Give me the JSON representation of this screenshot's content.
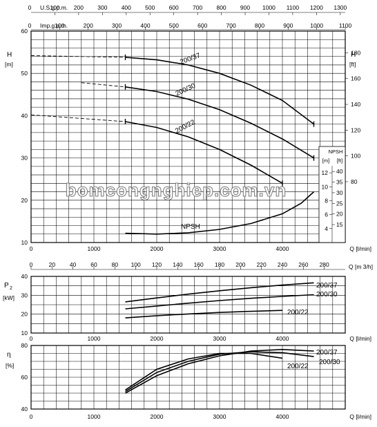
{
  "watermark": "bomcongnghiep.com.vn",
  "top_axes": {
    "usgpm": {
      "label": "U.S.g.p.m.",
      "start": "0",
      "ticks": [
        "100",
        "200",
        "300",
        "400",
        "500",
        "600",
        "700",
        "800",
        "900",
        "1000",
        "1100",
        "1200",
        "1300"
      ]
    },
    "impgpm": {
      "label": "Imp.g.p.m.",
      "start": "0",
      "ticks": [
        "100",
        "200",
        "300",
        "400",
        "500",
        "600",
        "700",
        "800",
        "900",
        "1000",
        "1100"
      ]
    }
  },
  "chart_data": [
    {
      "type": "line",
      "name": "head",
      "ylabel": "H",
      "yunit": "[m]",
      "ylabel_right": "H",
      "yunit_right": "[ft]",
      "xlabel": "Q [l/min]",
      "xlim": [
        0,
        5000
      ],
      "ylim": [
        10,
        60
      ],
      "x_ticks": [
        "0",
        "1000",
        "2000",
        "3000",
        "4000"
      ],
      "y_ticks": [
        "10",
        "20",
        "30",
        "40",
        "50",
        "60"
      ],
      "y_ticks_right": [
        "80",
        "100",
        "120",
        "140",
        "160",
        "180"
      ],
      "series": [
        {
          "name": "200/37",
          "dashed": [
            [
              0,
              54.2
            ],
            [
              1500,
              53.8
            ]
          ],
          "solid": [
            [
              1500,
              53.8
            ],
            [
              2000,
              53.2
            ],
            [
              2500,
              52.0
            ],
            [
              3000,
              50.0
            ],
            [
              3500,
              47.2
            ],
            [
              4000,
              43.6
            ],
            [
              4500,
              38.0
            ]
          ]
        },
        {
          "name": "200/30",
          "dashed": [
            [
              800,
              47.8
            ],
            [
              1500,
              46.8
            ]
          ],
          "solid": [
            [
              1500,
              46.8
            ],
            [
              2000,
              45.7
            ],
            [
              2500,
              43.9
            ],
            [
              3000,
              41.4
            ],
            [
              3500,
              38.2
            ],
            [
              4000,
              34.5
            ],
            [
              4500,
              30.0
            ]
          ]
        },
        {
          "name": "200/22",
          "dashed": [
            [
              0,
              40.2
            ],
            [
              1500,
              38.6
            ]
          ],
          "solid": [
            [
              1500,
              38.6
            ],
            [
              2000,
              37.2
            ],
            [
              2500,
              35.0
            ],
            [
              3000,
              32.0
            ],
            [
              3500,
              28.3
            ],
            [
              4000,
              24.0
            ]
          ]
        }
      ],
      "npsh": {
        "name": "NPSH",
        "points": [
          [
            1500,
            12.2
          ],
          [
            2000,
            12.0
          ],
          [
            2500,
            12.3
          ],
          [
            3000,
            13.1
          ],
          [
            3500,
            14.5
          ],
          [
            4000,
            16.8
          ],
          [
            4300,
            19.3
          ],
          [
            4500,
            22.0
          ]
        ],
        "box_label": "NPSH",
        "m_label": "[m]",
        "ft_label": "[ft]",
        "m_ticks": [
          "4",
          "6",
          "8",
          "10",
          "12"
        ],
        "ft_ticks": [
          "15",
          "20",
          "25",
          "30",
          "35",
          "40"
        ]
      }
    },
    {
      "type": "line",
      "name": "power",
      "ylabel": "P",
      "ylabel_sub": "2",
      "yunit": "[kW]",
      "xlabel": "Q [l/min]",
      "xlabel_m3h": "Q [m 3/h]",
      "xlim": [
        0,
        5000
      ],
      "ylim": [
        10,
        40
      ],
      "x_ticks": [
        "0",
        "1000",
        "2000",
        "3000",
        "4000"
      ],
      "x_ticks_m3h": [
        "0",
        "20",
        "40",
        "60",
        "80",
        "100",
        "120",
        "140",
        "160",
        "180",
        "200",
        "220",
        "240",
        "260",
        "280"
      ],
      "y_ticks": [
        "10",
        "20",
        "30",
        "40"
      ],
      "series": [
        {
          "name": "200/37",
          "points": [
            [
              1500,
              26.5
            ],
            [
              2000,
              28.6
            ],
            [
              2500,
              30.6
            ],
            [
              3000,
              32.4
            ],
            [
              3500,
              34.0
            ],
            [
              4000,
              35.4
            ],
            [
              4500,
              36.6
            ]
          ]
        },
        {
          "name": "200/30",
          "points": [
            [
              1500,
              22.8
            ],
            [
              2000,
              24.3
            ],
            [
              2500,
              25.8
            ],
            [
              3000,
              27.2
            ],
            [
              3500,
              28.4
            ],
            [
              4000,
              29.4
            ],
            [
              4500,
              30.3
            ]
          ]
        },
        {
          "name": "200/22",
          "points": [
            [
              1500,
              18.0
            ],
            [
              2000,
              19.2
            ],
            [
              2500,
              20.1
            ],
            [
              3000,
              20.9
            ],
            [
              3500,
              21.5
            ],
            [
              4000,
              22.0
            ]
          ]
        }
      ]
    },
    {
      "type": "line",
      "name": "efficiency",
      "ylabel": "η",
      "yunit": "[%]",
      "xlabel": "Q [l/min]",
      "xlim": [
        0,
        5000
      ],
      "ylim": [
        40,
        80
      ],
      "x_ticks": [
        "0",
        "1000",
        "2000",
        "3000",
        "4000"
      ],
      "y_ticks": [
        "40",
        "60",
        "80"
      ],
      "series": [
        {
          "name": "200/37",
          "points": [
            [
              1500,
              50.0
            ],
            [
              2000,
              61.0
            ],
            [
              2500,
              68.5
            ],
            [
              3000,
              73.5
            ],
            [
              3500,
              76.5
            ],
            [
              4000,
              77.5
            ],
            [
              4500,
              76.5
            ]
          ]
        },
        {
          "name": "200/30",
          "points": [
            [
              1500,
              51.0
            ],
            [
              2000,
              63.0
            ],
            [
              2500,
              70.0
            ],
            [
              3000,
              74.5
            ],
            [
              3500,
              76.0
            ],
            [
              4000,
              75.5
            ],
            [
              4500,
              73.0
            ]
          ]
        },
        {
          "name": "200/22",
          "points": [
            [
              1500,
              52.0
            ],
            [
              2000,
              65.0
            ],
            [
              2500,
              71.5
            ],
            [
              3000,
              75.0
            ],
            [
              3500,
              75.0
            ],
            [
              4000,
              72.0
            ]
          ]
        }
      ]
    }
  ]
}
